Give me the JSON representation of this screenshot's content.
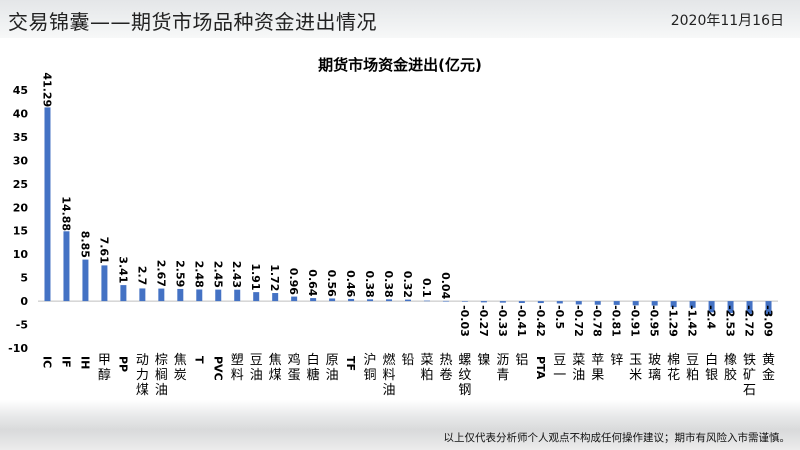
{
  "header": {
    "title": "交易锦囊——期货市场品种资金进出情况",
    "date": "2020年11月16日"
  },
  "footer": {
    "disclaimer": "以上仅代表分析师个人观点不构成任何操作建议；期市有风险入市需谨慎。"
  },
  "colors": {
    "bar": "#4472c4",
    "axis": "#bfbfbf",
    "text": "#000000"
  },
  "chart_data": {
    "type": "bar",
    "title": "期货市场资金进出(亿元)",
    "xlabel": "",
    "ylabel": "",
    "ylim": [
      -10,
      45
    ],
    "yticks": [
      -10,
      -5,
      0,
      5,
      10,
      15,
      20,
      25,
      30,
      35,
      40,
      45
    ],
    "grid": false,
    "legend": "none",
    "categories": [
      "IC",
      "IF",
      "IH",
      "甲醇",
      "PP",
      "动力煤",
      "棕榈油",
      "焦炭",
      "T",
      "PVC",
      "塑料",
      "豆油",
      "焦煤",
      "鸡蛋",
      "白糖",
      "原油",
      "TF",
      "沪铜",
      "燃料油",
      "铅",
      "菜粕",
      "热卷",
      "螺纹钢",
      "镍",
      "沥青",
      "铝",
      "PTA",
      "豆一",
      "菜油",
      "苹果",
      "锌",
      "玉米",
      "玻璃",
      "棉花",
      "豆粕",
      "白银",
      "橡胶",
      "铁矿石",
      "黄金"
    ],
    "values": [
      41.29,
      14.88,
      8.85,
      7.61,
      3.41,
      2.7,
      2.67,
      2.59,
      2.48,
      2.45,
      2.43,
      1.91,
      1.72,
      0.96,
      0.64,
      0.56,
      0.46,
      0.38,
      0.38,
      0.32,
      0.1,
      0.04,
      -0.03,
      -0.27,
      -0.33,
      -0.41,
      -0.42,
      -0.5,
      -0.72,
      -0.78,
      -0.81,
      -0.91,
      -0.95,
      -1.29,
      -1.42,
      -2.4,
      -2.53,
      -2.72,
      -3.09
    ]
  }
}
